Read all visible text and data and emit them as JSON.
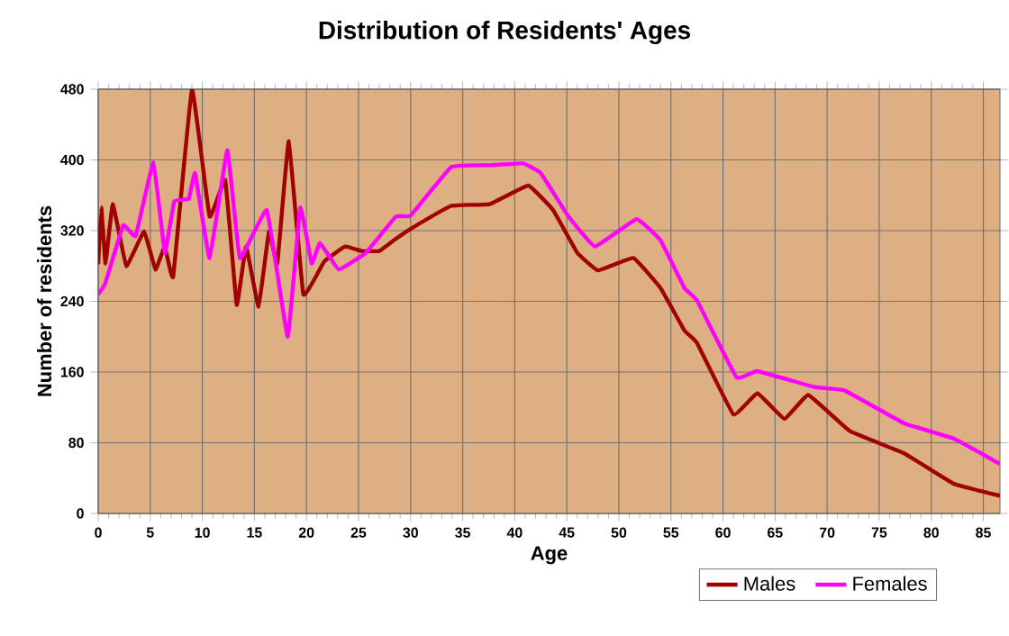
{
  "chart_data": {
    "type": "line",
    "title": "Distribution of Residents' Ages",
    "xlabel": "Age",
    "ylabel": "Number of residents",
    "xlim": [
      0,
      86.6
    ],
    "ylim": [
      0,
      480
    ],
    "xticks": [
      0,
      5,
      10,
      15,
      20,
      25,
      30,
      35,
      40,
      45,
      50,
      55,
      60,
      65,
      70,
      75,
      80,
      85
    ],
    "yticks": [
      0,
      80,
      160,
      240,
      320,
      400,
      480
    ],
    "grid": true,
    "legend": "bottom right",
    "line_style": "solid",
    "marker": "none",
    "series": [
      {
        "name": "Males",
        "color": "#a00000",
        "x": [
          0,
          0.3,
          0.7,
          1.4,
          2.7,
          4.4,
          5.5,
          6.4,
          7.2,
          9.0,
          10.7,
          12.2,
          13.3,
          14.2,
          15.4,
          16.4,
          17.2,
          18.3,
          19.7,
          21.7,
          23.7,
          25.3,
          27.0,
          28.5,
          30,
          33.9,
          37.6,
          41.3,
          43.7,
          46.0,
          48.0,
          51.4,
          54.0,
          56.3,
          57.5,
          61.0,
          63.3,
          65.9,
          68.2,
          72.2,
          77.4,
          82.1,
          86.6
        ],
        "values": [
          282,
          346,
          283,
          350,
          280,
          319,
          276,
          302,
          268,
          480,
          336,
          377,
          236,
          302,
          234,
          319,
          283,
          421,
          248,
          285,
          302,
          297,
          297,
          310,
          322,
          348,
          350,
          371,
          343,
          295,
          275,
          289,
          255,
          207,
          193,
          112,
          136,
          107,
          134,
          93,
          68,
          34,
          20
        ]
      },
      {
        "name": "Females",
        "color": "#ff00ff",
        "x": [
          0,
          0.7,
          2.4,
          3.6,
          5.3,
          6.4,
          7.3,
          8.7,
          9.3,
          10.7,
          12.4,
          13.6,
          16.2,
          18.2,
          19.4,
          20.5,
          21.3,
          23.1,
          25.7,
          28.6,
          30,
          33.9,
          37.6,
          40.8,
          42.5,
          45.1,
          47.7,
          51.7,
          54.0,
          56.3,
          57.5,
          61.3,
          63.3,
          68.8,
          71.7,
          77.4,
          82.1,
          86.6
        ],
        "values": [
          248,
          261,
          326,
          314,
          397,
          295,
          353,
          356,
          385,
          289,
          411,
          289,
          343,
          200,
          346,
          283,
          306,
          276,
          295,
          336,
          337,
          392,
          394,
          396,
          385,
          337,
          302,
          333,
          309,
          255,
          241,
          154,
          161,
          143,
          139,
          102,
          85,
          56
        ]
      }
    ]
  }
}
